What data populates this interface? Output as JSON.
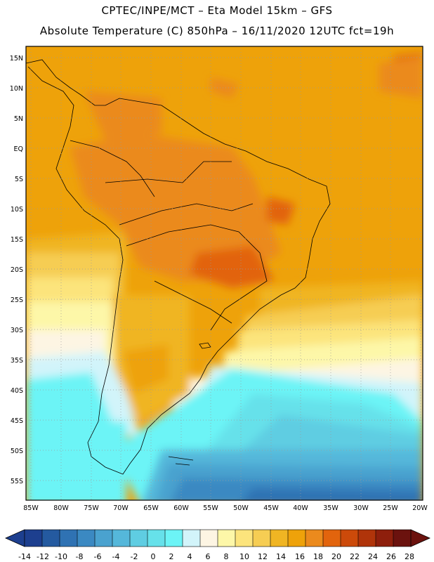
{
  "header": {
    "title_line1": "CPTEC/INPE/MCT –   Eta Model 15km – GFS",
    "title_line2": "Absolute Temperature (C) 850hPa – 16/11/2020 12UTC fct=19h"
  },
  "map": {
    "lat_labels": [
      "15N",
      "10N",
      "5N",
      "EQ",
      "5S",
      "10S",
      "15S",
      "20S",
      "25S",
      "30S",
      "35S",
      "40S",
      "45S",
      "50S",
      "55S"
    ],
    "lon_labels": [
      "85W",
      "80W",
      "75W",
      "70W",
      "65W",
      "60W",
      "55W",
      "50W",
      "45W",
      "40W",
      "35W",
      "30W",
      "25W",
      "20W"
    ]
  },
  "colorbar": {
    "labels": [
      "-14",
      "-12",
      "-10",
      "-8",
      "-6",
      "-4",
      "-2",
      "0",
      "2",
      "4",
      "6",
      "8",
      "10",
      "12",
      "14",
      "16",
      "18",
      "20",
      "22",
      "24",
      "26",
      "28"
    ],
    "colors": [
      "#1d3f8f",
      "#245aa0",
      "#2f72b3",
      "#3b89c2",
      "#4aa2cf",
      "#55b7da",
      "#5fcde2",
      "#66e1ea",
      "#6cf4f6",
      "#d2f4fa",
      "#fdf5e3",
      "#fdf7a8",
      "#fce47c",
      "#f6cd53",
      "#f0b523",
      "#eea20a",
      "#eb8a1d",
      "#e2640d",
      "#cc4a0a",
      "#b0340a",
      "#8e1f0c",
      "#6b120e"
    ],
    "under_color": "#1d3f8f",
    "over_color": "#6b120e"
  }
}
